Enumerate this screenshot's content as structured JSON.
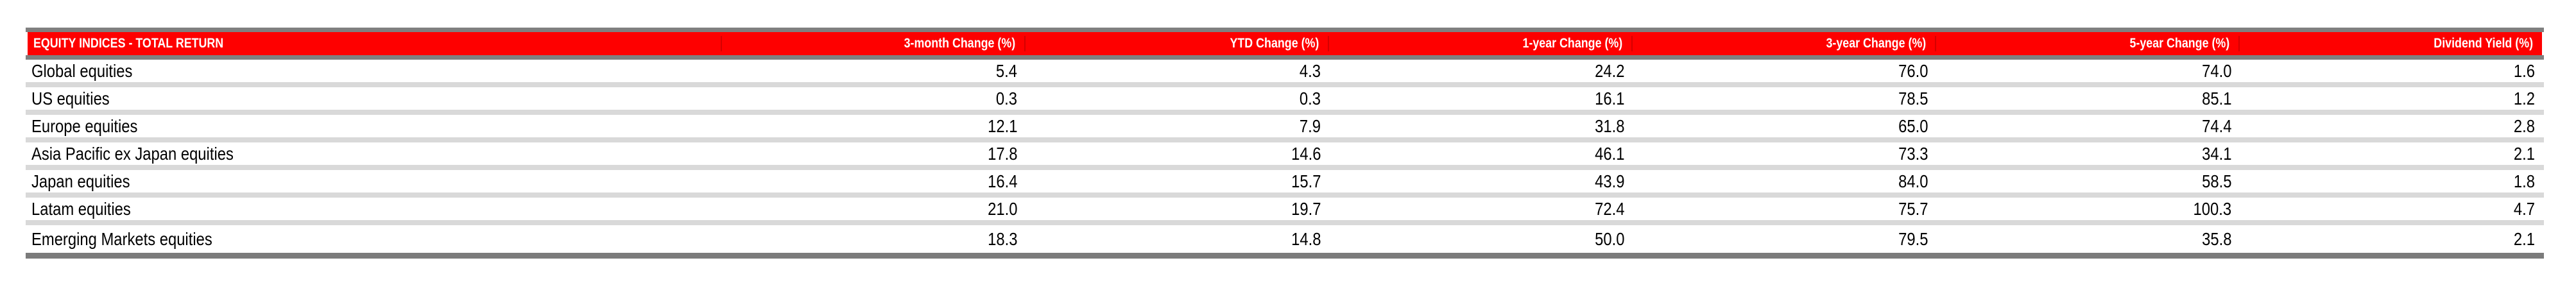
{
  "table": {
    "title": "EQUITY INDICES - TOTAL RETURN",
    "columns": [
      "3-month Change (%)",
      "YTD Change (%)",
      "1-year Change (%)",
      "3-year Change (%)",
      "5-year Change (%)",
      "Dividend Yield (%)"
    ],
    "rows": [
      {
        "label": "Global equities",
        "values": [
          "5.4",
          "4.3",
          "24.2",
          "76.0",
          "74.0",
          "1.6"
        ]
      },
      {
        "label": "US equities",
        "values": [
          "0.3",
          "0.3",
          "16.1",
          "78.5",
          "85.1",
          "1.2"
        ]
      },
      {
        "label": "Europe equities",
        "values": [
          "12.1",
          "7.9",
          "31.8",
          "65.0",
          "74.4",
          "2.8"
        ]
      },
      {
        "label": "Asia Pacific ex Japan equities",
        "values": [
          "17.8",
          "14.6",
          "46.1",
          "73.3",
          "34.1",
          "2.1"
        ]
      },
      {
        "label": "Japan equities",
        "values": [
          "16.4",
          "15.7",
          "43.9",
          "84.0",
          "58.5",
          "1.8"
        ]
      },
      {
        "label": "Latam equities",
        "values": [
          "21.0",
          "19.7",
          "72.4",
          "75.7",
          "100.3",
          "4.7"
        ]
      },
      {
        "label": "Emerging Markets equities",
        "values": [
          "18.3",
          "14.8",
          "50.0",
          "79.5",
          "35.8",
          "2.1"
        ]
      }
    ]
  },
  "colors": {
    "header_bg": "#fe0000",
    "header_text": "#ffffff",
    "border_gray": "#808080",
    "row_separator": "#d9d9d9",
    "bottom_border": "#7b7b7b",
    "body_text": "#000000"
  },
  "chart_data": {
    "type": "table",
    "title": "EQUITY INDICES - TOTAL RETURN",
    "columns": [
      "3-month Change (%)",
      "YTD Change (%)",
      "1-year Change (%)",
      "3-year Change (%)",
      "5-year Change (%)",
      "Dividend Yield (%)"
    ],
    "row_labels": [
      "Global equities",
      "US equities",
      "Europe equities",
      "Asia Pacific ex Japan equities",
      "Japan equities",
      "Latam equities",
      "Emerging Markets equities"
    ],
    "values": [
      [
        5.4,
        4.3,
        24.2,
        76.0,
        74.0,
        1.6
      ],
      [
        0.3,
        0.3,
        16.1,
        78.5,
        85.1,
        1.2
      ],
      [
        12.1,
        7.9,
        31.8,
        65.0,
        74.4,
        2.8
      ],
      [
        17.8,
        14.6,
        46.1,
        73.3,
        34.1,
        2.1
      ],
      [
        16.4,
        15.7,
        43.9,
        84.0,
        58.5,
        1.8
      ],
      [
        21.0,
        19.7,
        72.4,
        75.7,
        100.3,
        4.7
      ],
      [
        18.3,
        14.8,
        50.0,
        79.5,
        35.8,
        2.1
      ]
    ]
  }
}
